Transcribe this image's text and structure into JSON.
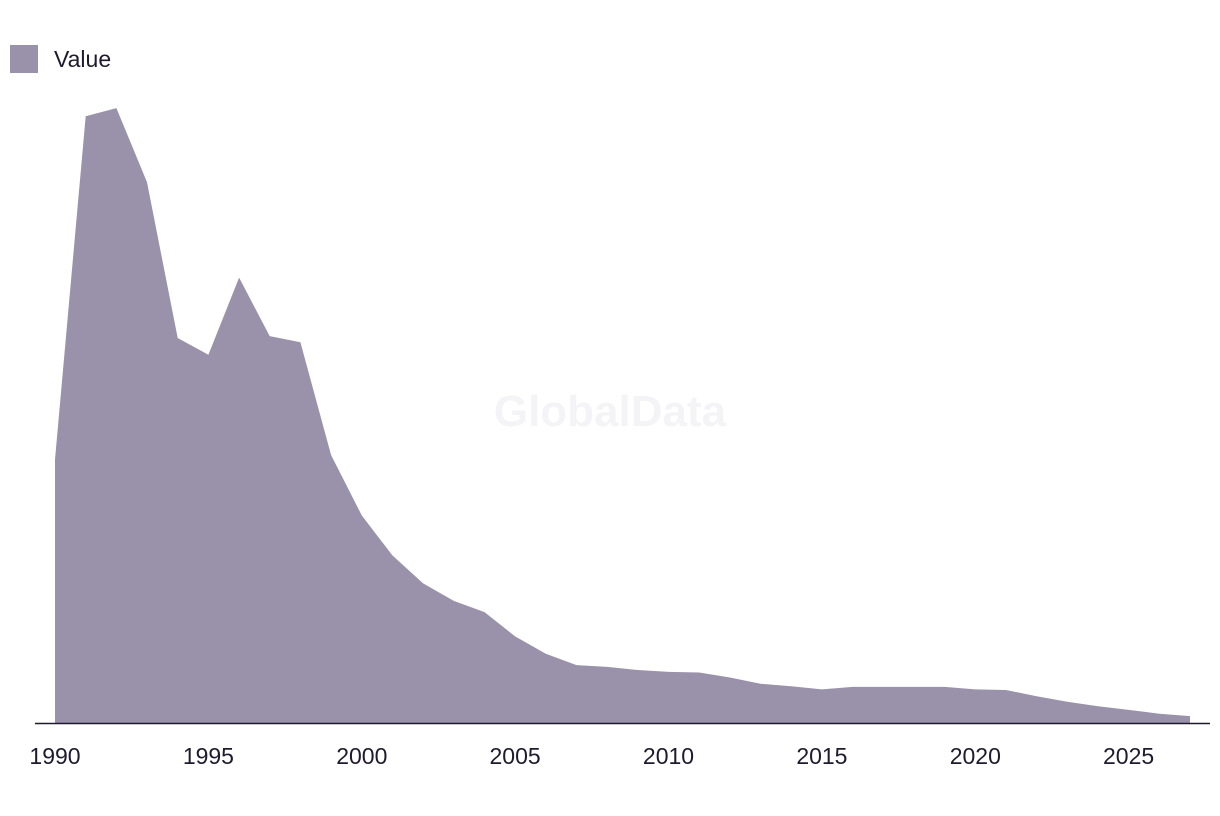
{
  "legend": {
    "label": "Value"
  },
  "watermark": "GlobalData",
  "colors": {
    "area": "#9a91aa",
    "axis": "#1f1a2e"
  },
  "chart_data": {
    "type": "area",
    "title": "",
    "xlabel": "",
    "ylabel": "",
    "grid": false,
    "legend_position": "top-left",
    "xlim": [
      1990,
      2027
    ],
    "ylim": [
      0,
      100
    ],
    "x_ticks": [
      1990,
      1995,
      2000,
      2005,
      2010,
      2015,
      2020,
      2025
    ],
    "x": [
      1990,
      1991,
      1992,
      1993,
      1994,
      1995,
      1996,
      1997,
      1998,
      1999,
      2000,
      2001,
      2002,
      2003,
      2004,
      2005,
      2006,
      2007,
      2008,
      2009,
      2010,
      2011,
      2012,
      2013,
      2014,
      2015,
      2016,
      2017,
      2018,
      2019,
      2020,
      2021,
      2022,
      2023,
      2024,
      2025,
      2026,
      2027
    ],
    "series": [
      {
        "name": "Value",
        "values": [
          42.3,
          97.4,
          98.7,
          86.8,
          61.8,
          59.1,
          71.5,
          62.1,
          61.1,
          43.0,
          33.3,
          26.9,
          22.4,
          19.6,
          17.8,
          13.9,
          11.1,
          9.3,
          9.0,
          8.5,
          8.2,
          8.1,
          7.3,
          6.3,
          5.9,
          5.4,
          5.8,
          5.8,
          5.8,
          5.8,
          5.4,
          5.3,
          4.3,
          3.4,
          2.7,
          2.1,
          1.5,
          1.1
        ]
      }
    ]
  }
}
